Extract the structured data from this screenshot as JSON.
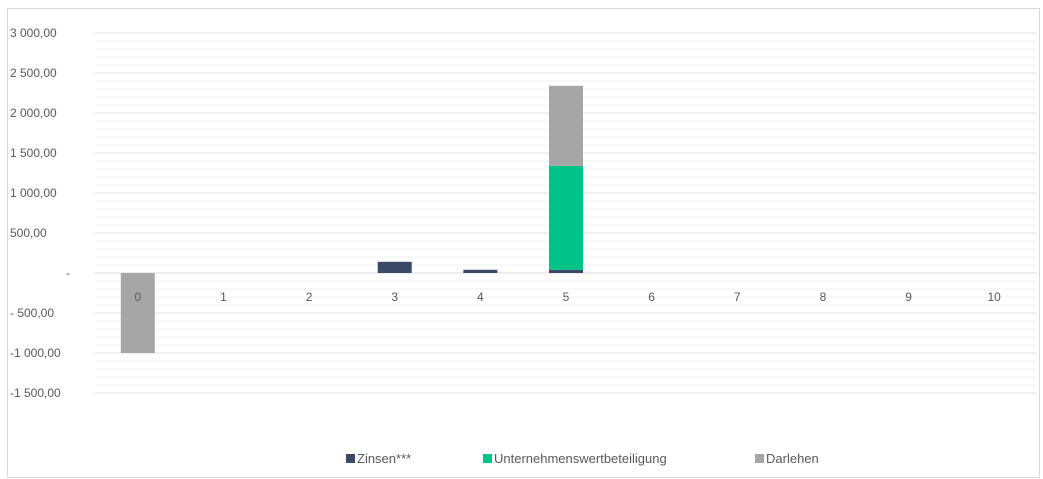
{
  "chart_data": {
    "type": "bar",
    "stacked": true,
    "categories": [
      "0",
      "1",
      "2",
      "3",
      "4",
      "5",
      "6",
      "7",
      "8",
      "9",
      "10"
    ],
    "series": [
      {
        "name": "Zinsen***",
        "color": "#3a4a66",
        "values": [
          0,
          0,
          0,
          140,
          40,
          40,
          0,
          0,
          0,
          0,
          0
        ]
      },
      {
        "name": "Unternehmenswertbeteiligung",
        "color": "#00c389",
        "values": [
          0,
          0,
          0,
          0,
          0,
          1300,
          0,
          0,
          0,
          0,
          0
        ]
      },
      {
        "name": "Darlehen",
        "color": "#a6a6a6",
        "values": [
          -1000,
          0,
          0,
          0,
          0,
          1000,
          0,
          0,
          0,
          0,
          0
        ]
      }
    ],
    "ylim": [
      -1500,
      3000
    ],
    "y_ticks": [
      {
        "value": 3000,
        "label": "3 000,00"
      },
      {
        "value": 2500,
        "label": "2 500,00"
      },
      {
        "value": 2000,
        "label": "2 000,00"
      },
      {
        "value": 1500,
        "label": "1 500,00"
      },
      {
        "value": 1000,
        "label": "1 000,00"
      },
      {
        "value": 500,
        "label": "500,00"
      },
      {
        "value": 0,
        "label": "-"
      },
      {
        "value": -500,
        "label": "- 500,00"
      },
      {
        "value": -1000,
        "label": "-1 000,00"
      },
      {
        "value": -1500,
        "label": "-1 500,00"
      }
    ],
    "grid": true,
    "legend_position": "bottom",
    "title": "",
    "xlabel": "",
    "ylabel": ""
  }
}
